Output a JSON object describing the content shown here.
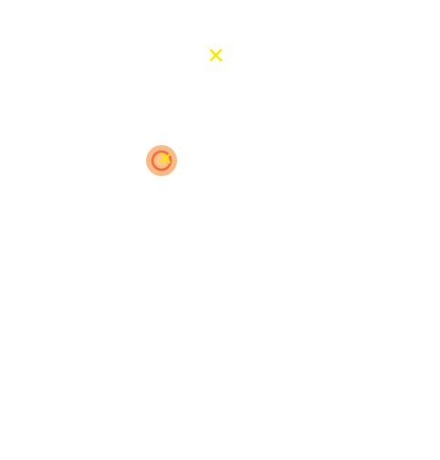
{
  "scene": {
    "background_color": "#ffffff"
  },
  "colors": {
    "target_marker": "#ffe600",
    "cursor_halo": "#f7b27a",
    "cursor_ring": "#f06a3a",
    "cursor_core": "#fff176"
  },
  "icons": {
    "target": "x-marker-icon",
    "cursor": "cursor-ring-icon"
  }
}
